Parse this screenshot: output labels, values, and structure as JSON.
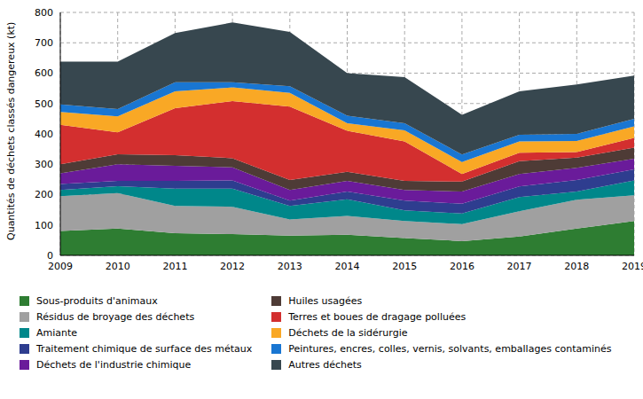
{
  "chart_data": {
    "type": "area",
    "stacked": true,
    "grid": true,
    "y_label": "Quantités de déchets classés dangereux (kt)",
    "x": [
      2009,
      2010,
      2011,
      2012,
      2013,
      2014,
      2015,
      2016,
      2017,
      2018,
      2019
    ],
    "xlim": [
      2009,
      2019
    ],
    "xticks": [
      2009,
      2010,
      2011,
      2012,
      2013,
      2014,
      2015,
      2016,
      2017,
      2018,
      2019
    ],
    "ylim": [
      0,
      800
    ],
    "yticks": [
      0,
      100,
      200,
      300,
      400,
      500,
      600,
      700,
      800
    ],
    "legend": "bottom",
    "series": [
      {
        "name": "Sous-produits d'animaux",
        "color": "#2e7d32",
        "values": [
          80,
          88,
          73,
          70,
          65,
          68,
          57,
          47,
          62,
          88,
          113
        ]
      },
      {
        "name": "Résidus de broyage des déchets",
        "color": "#a0a0a0",
        "values": [
          115,
          117,
          90,
          90,
          53,
          62,
          56,
          56,
          83,
          95,
          85
        ]
      },
      {
        "name": "Amiante",
        "color": "#00878a",
        "values": [
          20,
          23,
          57,
          60,
          45,
          55,
          35,
          35,
          47,
          27,
          49
        ]
      },
      {
        "name": "Traitement chimique de surface des métaux",
        "color": "#2e3d8f",
        "values": [
          20,
          17,
          25,
          27,
          17,
          25,
          32,
          32,
          35,
          38,
          36
        ]
      },
      {
        "name": "Déchets de l'industrie chimique",
        "color": "#6a1b9a",
        "values": [
          35,
          55,
          50,
          43,
          35,
          35,
          35,
          40,
          41,
          40,
          35
        ]
      },
      {
        "name": "Huiles usagées",
        "color": "#4e3b36",
        "values": [
          30,
          33,
          35,
          30,
          33,
          30,
          30,
          33,
          42,
          34,
          37
        ]
      },
      {
        "name": "Terres et boues de dragage polluées",
        "color": "#d32f2f",
        "values": [
          130,
          72,
          155,
          188,
          242,
          135,
          130,
          25,
          28,
          18,
          32
        ]
      },
      {
        "name": "Déchets de la sidérurgie",
        "color": "#f9a825",
        "values": [
          42,
          53,
          55,
          45,
          45,
          25,
          37,
          39,
          37,
          37,
          38
        ]
      },
      {
        "name": "Peintures, encres, colles, vernis, solvants, emballages contaminés",
        "color": "#1976d2",
        "values": [
          25,
          24,
          30,
          17,
          22,
          25,
          23,
          25,
          22,
          23,
          25
        ]
      },
      {
        "name": "Autres déchets",
        "color": "#37474f",
        "values": [
          141,
          156,
          162,
          197,
          179,
          140,
          152,
          131,
          143,
          163,
          142
        ]
      }
    ]
  }
}
